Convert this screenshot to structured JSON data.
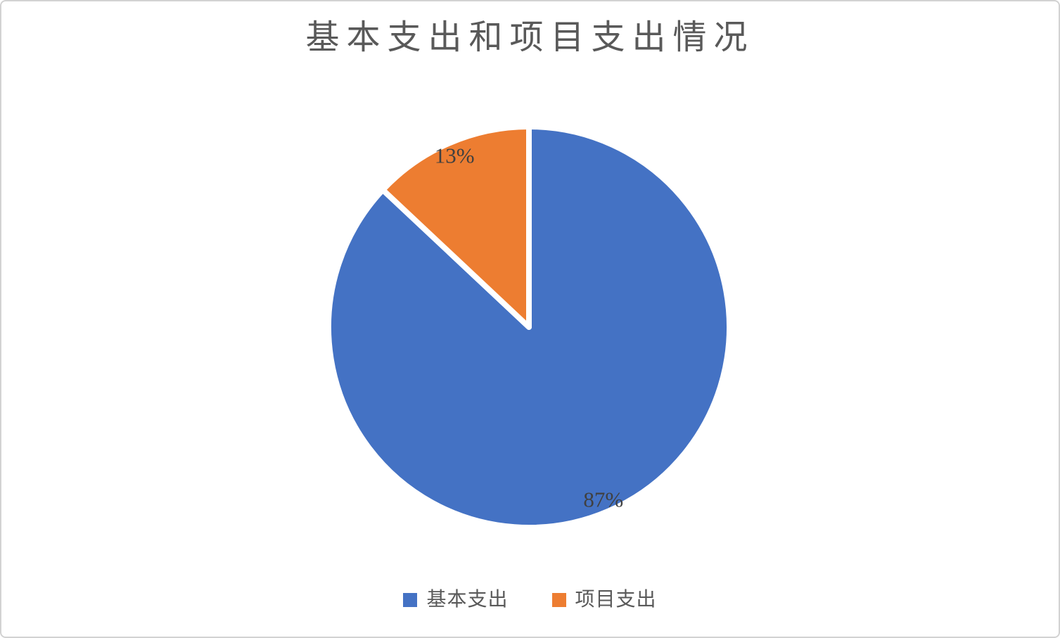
{
  "chart_data": {
    "type": "pie",
    "title": "基本支出和项目支出情况",
    "categories": [
      "基本支出",
      "项目支出"
    ],
    "values": [
      87,
      13
    ],
    "data_labels": [
      "87%",
      "13%"
    ],
    "colors": [
      "#4472C4",
      "#ED7D31"
    ],
    "legend_position": "bottom",
    "start_angle_deg": 0,
    "direction": "clockwise",
    "title_color": "#595959",
    "data_label_color": "#404040",
    "slice_border_color": "#FFFFFF"
  }
}
